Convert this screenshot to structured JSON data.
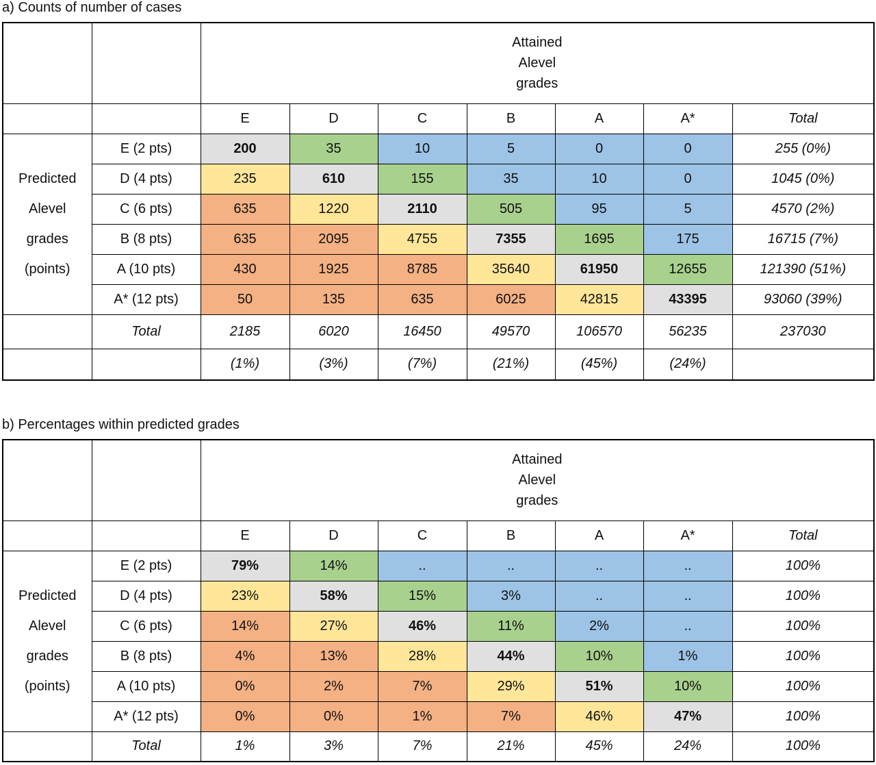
{
  "table_a": {
    "title": "a) Counts of number of cases",
    "header_lines": [
      "Attained",
      "Alevel",
      "grades"
    ],
    "columns": [
      "E",
      "D",
      "C",
      "B",
      "A",
      "A*",
      "Total"
    ],
    "row_header_lines": [
      "Predicted",
      "Alevel",
      "grades",
      "(points)"
    ],
    "rows": [
      {
        "label": "E (2 pts)",
        "cells": [
          200,
          35,
          10,
          5,
          0,
          0
        ],
        "total": "255 (0%)"
      },
      {
        "label": "D (4 pts)",
        "cells": [
          235,
          610,
          155,
          35,
          10,
          0
        ],
        "total": "1045 (0%)"
      },
      {
        "label": "C (6 pts)",
        "cells": [
          635,
          1220,
          2110,
          505,
          95,
          5
        ],
        "total": "4570 (2%)"
      },
      {
        "label": "B (8 pts)",
        "cells": [
          635,
          2095,
          4755,
          7355,
          1695,
          175
        ],
        "total": "16715 (7%)"
      },
      {
        "label": "A (10 pts)",
        "cells": [
          430,
          1925,
          8785,
          35640,
          61950,
          12655
        ],
        "total": "121390 (51%)"
      },
      {
        "label": "A* (12 pts)",
        "cells": [
          50,
          135,
          635,
          6025,
          42815,
          43395
        ],
        "total": "93060 (39%)"
      }
    ],
    "total_label": "Total",
    "totals": [
      2185,
      6020,
      16450,
      49570,
      106570,
      56235,
      237030
    ],
    "total_pcts": [
      "(1%)",
      "(3%)",
      "(7%)",
      "(21%)",
      "(45%)",
      "(24%)"
    ]
  },
  "table_b": {
    "title": "b) Percentages within predicted grades",
    "header_lines": [
      "Attained",
      "Alevel",
      "grades"
    ],
    "columns": [
      "E",
      "D",
      "C",
      "B",
      "A",
      "A*",
      "Total"
    ],
    "row_header_lines": [
      "Predicted",
      "Alevel",
      "grades",
      "(points)"
    ],
    "rows": [
      {
        "label": "E (2 pts)",
        "cells": [
          "79%",
          "14%",
          "..",
          "..",
          "..",
          ".."
        ],
        "total": "100%"
      },
      {
        "label": "D (4 pts)",
        "cells": [
          "23%",
          "58%",
          "15%",
          "3%",
          "..",
          ".."
        ],
        "total": "100%"
      },
      {
        "label": "C (6 pts)",
        "cells": [
          "14%",
          "27%",
          "46%",
          "11%",
          "2%",
          ".."
        ],
        "total": "100%"
      },
      {
        "label": "B (8 pts)",
        "cells": [
          "4%",
          "13%",
          "28%",
          "44%",
          "10%",
          "1%"
        ],
        "total": "100%"
      },
      {
        "label": "A (10 pts)",
        "cells": [
          "0%",
          "2%",
          "7%",
          "29%",
          "51%",
          "10%"
        ],
        "total": "100%"
      },
      {
        "label": "A* (12 pts)",
        "cells": [
          "0%",
          "0%",
          "1%",
          "7%",
          "46%",
          "47%"
        ],
        "total": "100%"
      }
    ],
    "total_label": "Total",
    "totals": [
      "1%",
      "3%",
      "7%",
      "21%",
      "45%",
      "24%",
      "100%"
    ]
  }
}
